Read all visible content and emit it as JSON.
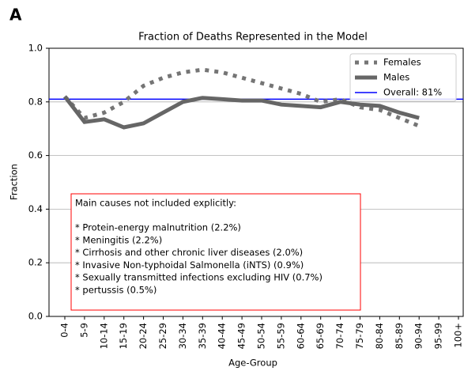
{
  "chart_data": {
    "type": "line",
    "panel_label": "A",
    "title": "Fraction of Deaths Represented in the Model",
    "x_label": "Age-Group",
    "y_label": "Fraction",
    "categories": [
      "0-4",
      "5-9",
      "10-14",
      "15-19",
      "20-24",
      "25-29",
      "30-34",
      "35-39",
      "40-44",
      "45-49",
      "50-54",
      "55-59",
      "60-64",
      "65-69",
      "70-74",
      "75-79",
      "80-84",
      "85-89",
      "90-94",
      "95-99",
      "100+"
    ],
    "series": [
      {
        "name": "Females",
        "color": "#757575",
        "style": "dotted",
        "values": [
          0.82,
          0.74,
          0.76,
          0.8,
          0.86,
          0.89,
          0.91,
          0.92,
          0.91,
          0.89,
          0.87,
          0.85,
          0.83,
          0.8,
          0.81,
          0.78,
          0.77,
          0.74,
          0.71,
          null,
          null
        ]
      },
      {
        "name": "Males",
        "color": "#666666",
        "style": "solid",
        "values": [
          0.82,
          0.725,
          0.735,
          0.705,
          0.72,
          0.76,
          0.8,
          0.815,
          0.81,
          0.805,
          0.805,
          0.79,
          0.785,
          0.78,
          0.8,
          0.79,
          0.785,
          0.76,
          0.74,
          null,
          null
        ]
      }
    ],
    "reference_line": {
      "name": "Overall: 81%",
      "value": 0.81,
      "color": "#0000ff"
    },
    "ylim": [
      0,
      1
    ],
    "yticks": [
      {
        "value": 0,
        "label": "0.0"
      },
      0.2,
      0.4,
      0.6,
      0.8,
      {
        "value": 1,
        "label": "1.0"
      }
    ],
    "grid": true,
    "legend": "upper right",
    "annotation": {
      "title": "Main causes not included explicitly:",
      "lines": [
        "* Protein-energy malnutrition (2.2%)",
        "* Meningitis (2.2%)",
        "* Cirrhosis and other chronic liver diseases (2.0%)",
        "* Invasive Non-typhoidal Salmonella (iNTS) (0.9%)",
        "* Sexually transmitted infections excluding HIV (0.7%)",
        "* pertussis (0.5%)"
      ],
      "color": "#ff0000"
    }
  }
}
